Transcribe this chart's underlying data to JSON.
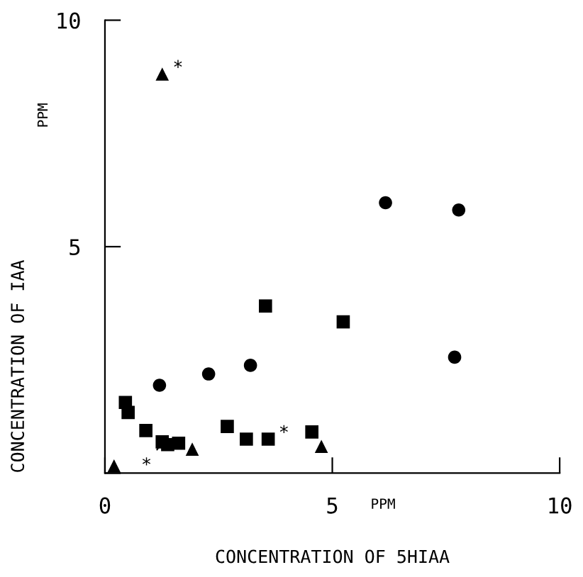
{
  "chart_data": {
    "type": "scatter",
    "xlabel": "CONCENTRATION OF 5HIAA",
    "ylabel": "CONCENTRATION OF IAA",
    "xlim": [
      0,
      10
    ],
    "ylim": [
      0,
      10
    ],
    "xticks": [
      0,
      5,
      10
    ],
    "yticks": [
      {
        "value": 0,
        "label": null
      },
      5,
      10
    ],
    "grid": false,
    "legend": false,
    "series": [
      {
        "color": "#000000",
        "marker": "circle",
        "x": [
          6.17,
          7.78,
          7.69,
          1.2,
          2.28,
          3.2
        ],
        "values": [
          5.97,
          5.81,
          2.56,
          1.94,
          2.19,
          2.38
        ]
      },
      {
        "color": "#000000",
        "marker": "square",
        "x": [
          3.53,
          5.24,
          0.45,
          0.51,
          0.9,
          1.26,
          1.38,
          1.62,
          2.69,
          3.11,
          3.59,
          4.55
        ],
        "values": [
          3.69,
          3.34,
          1.56,
          1.34,
          0.94,
          0.69,
          0.63,
          0.66,
          1.03,
          0.75,
          0.75,
          0.91
        ],
        "value_labels": [
          null,
          null,
          null,
          null,
          null,
          "*",
          null,
          null,
          null,
          null,
          "*",
          null
        ]
      },
      {
        "color": "#000000",
        "marker": "triangle",
        "x": [
          0.2,
          1.92,
          4.76,
          1.26
        ],
        "values": [
          0.16,
          0.53,
          0.59,
          8.81
        ],
        "value_labels": [
          null,
          null,
          null,
          "*"
        ]
      }
    ],
    "annotations": [
      "PPM",
      "PPM"
    ]
  }
}
